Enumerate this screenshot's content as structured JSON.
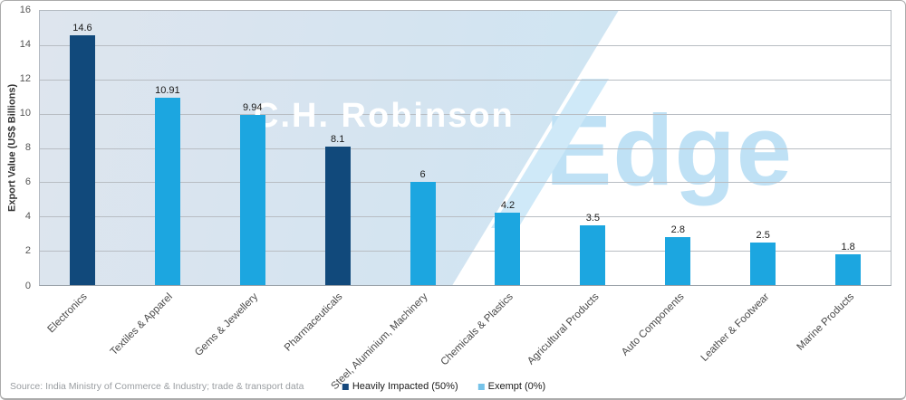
{
  "chart_data": {
    "type": "bar",
    "ylabel": "Export Value (US$ Billions)",
    "ylim": [
      0,
      16
    ],
    "yticks": [
      0,
      2,
      4,
      6,
      8,
      10,
      12,
      14,
      16
    ],
    "grid": true,
    "legend_position": "bottom",
    "categories": [
      "Electronics",
      "Textiles & Apparel",
      "Gems & Jewellery",
      "Pharmaceuticals",
      "Steel, Aluminium, Machinery",
      "Chemicals & Plastics",
      "Agricultural Products",
      "Auto Components",
      "Leather & Footwear",
      "Marine Products"
    ],
    "values": [
      14.6,
      10.91,
      9.94,
      8.1,
      6,
      4.2,
      3.5,
      2.8,
      2.5,
      1.8
    ],
    "value_labels": [
      "14.6",
      "10.91",
      "9.94",
      "8.1",
      "6",
      "4.2",
      "3.5",
      "2.8",
      "2.5",
      "1.8"
    ],
    "bar_series": [
      "heavily_impacted",
      "exempt",
      "exempt",
      "heavily_impacted",
      "exempt",
      "exempt",
      "exempt",
      "exempt",
      "exempt",
      "exempt"
    ],
    "legend": [
      {
        "label": "Heavily Impacted (50%)",
        "color": "#17497d"
      },
      {
        "label": "Exempt (0%)",
        "color": "#76c3e9"
      }
    ]
  },
  "watermark": {
    "primary": "C.H. Robinson",
    "secondary": "Edge"
  },
  "footer": {
    "source": "Source: India Ministry of Commerce & Industry; trade & transport data"
  },
  "colors": {
    "heavily_impacted": "#11497b",
    "exempt": "#1ca6e0",
    "plot_bg_start": "#dee5ee",
    "plot_bg_end": "#cbe6f5",
    "watermark_text": "#bfe1f5",
    "watermark_slash": "#cfe9f8",
    "gridline": "#b8bdc3"
  }
}
